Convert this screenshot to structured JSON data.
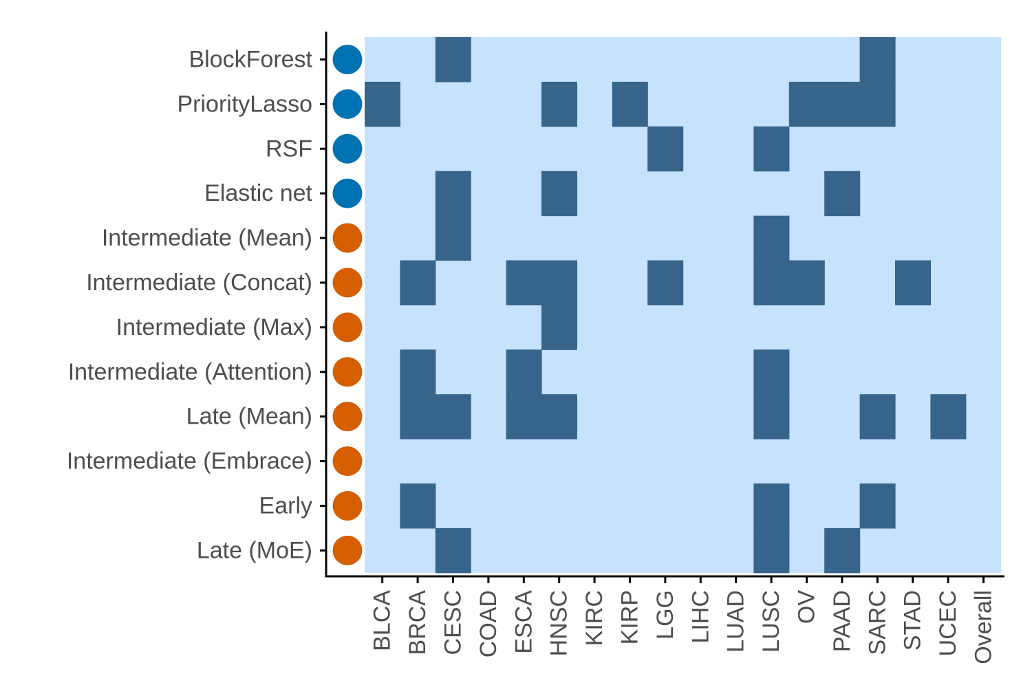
{
  "chart_data": {
    "type": "heatmap",
    "title": "",
    "xlabel": "",
    "ylabel": "",
    "categories": [
      "BLCA",
      "BRCA",
      "CESC",
      "COAD",
      "ESCA",
      "HNSC",
      "KIRC",
      "KIRP",
      "LGG",
      "LIHC",
      "LUAD",
      "LUSC",
      "OV",
      "PAAD",
      "SARC",
      "STAD",
      "UCEC",
      "Overall"
    ],
    "methods": [
      {
        "name": "BlockForest",
        "group": "blue"
      },
      {
        "name": "PriorityLasso",
        "group": "blue"
      },
      {
        "name": "RSF",
        "group": "blue"
      },
      {
        "name": "Elastic net",
        "group": "blue"
      },
      {
        "name": "Intermediate (Mean)",
        "group": "orange"
      },
      {
        "name": "Intermediate (Concat)",
        "group": "orange"
      },
      {
        "name": "Intermediate (Max)",
        "group": "orange"
      },
      {
        "name": "Intermediate (Attention)",
        "group": "orange"
      },
      {
        "name": "Late (Mean)",
        "group": "orange"
      },
      {
        "name": "Intermediate (Embrace)",
        "group": "orange"
      },
      {
        "name": "Early",
        "group": "orange"
      },
      {
        "name": "Late (MoE)",
        "group": "orange"
      }
    ],
    "matrix": [
      [
        0,
        0,
        1,
        0,
        0,
        0,
        0,
        0,
        0,
        0,
        0,
        0,
        0,
        0,
        1,
        0,
        0,
        0
      ],
      [
        1,
        0,
        0,
        0,
        0,
        1,
        0,
        1,
        0,
        0,
        0,
        0,
        1,
        1,
        1,
        0,
        0,
        0
      ],
      [
        0,
        0,
        0,
        0,
        0,
        0,
        0,
        0,
        1,
        0,
        0,
        1,
        0,
        0,
        0,
        0,
        0,
        0
      ],
      [
        0,
        0,
        1,
        0,
        0,
        1,
        0,
        0,
        0,
        0,
        0,
        0,
        0,
        1,
        0,
        0,
        0,
        0
      ],
      [
        0,
        0,
        1,
        0,
        0,
        0,
        0,
        0,
        0,
        0,
        0,
        1,
        0,
        0,
        0,
        0,
        0,
        0
      ],
      [
        0,
        1,
        0,
        0,
        1,
        1,
        0,
        0,
        1,
        0,
        0,
        1,
        1,
        0,
        0,
        1,
        0,
        0
      ],
      [
        0,
        0,
        0,
        0,
        0,
        1,
        0,
        0,
        0,
        0,
        0,
        0,
        0,
        0,
        0,
        0,
        0,
        0
      ],
      [
        0,
        1,
        0,
        0,
        1,
        0,
        0,
        0,
        0,
        0,
        0,
        1,
        0,
        0,
        0,
        0,
        0,
        0
      ],
      [
        0,
        1,
        1,
        0,
        1,
        1,
        0,
        0,
        0,
        0,
        0,
        1,
        0,
        0,
        1,
        0,
        1,
        0
      ],
      [
        0,
        0,
        0,
        0,
        0,
        0,
        0,
        0,
        0,
        0,
        0,
        0,
        0,
        0,
        0,
        0,
        0,
        0
      ],
      [
        0,
        1,
        0,
        0,
        0,
        0,
        0,
        0,
        0,
        0,
        0,
        1,
        0,
        0,
        1,
        0,
        0,
        0
      ],
      [
        0,
        0,
        1,
        0,
        0,
        0,
        0,
        0,
        0,
        0,
        0,
        1,
        0,
        1,
        0,
        0,
        0,
        0
      ]
    ],
    "legend": "none",
    "grid": false
  },
  "colors": {
    "cell_on": "#37648b",
    "cell_off": "#c6e2fd",
    "dot_blue": "#0072b2",
    "dot_orange": "#d55e00",
    "axis": "#000000",
    "label": "#4d4d4d"
  }
}
